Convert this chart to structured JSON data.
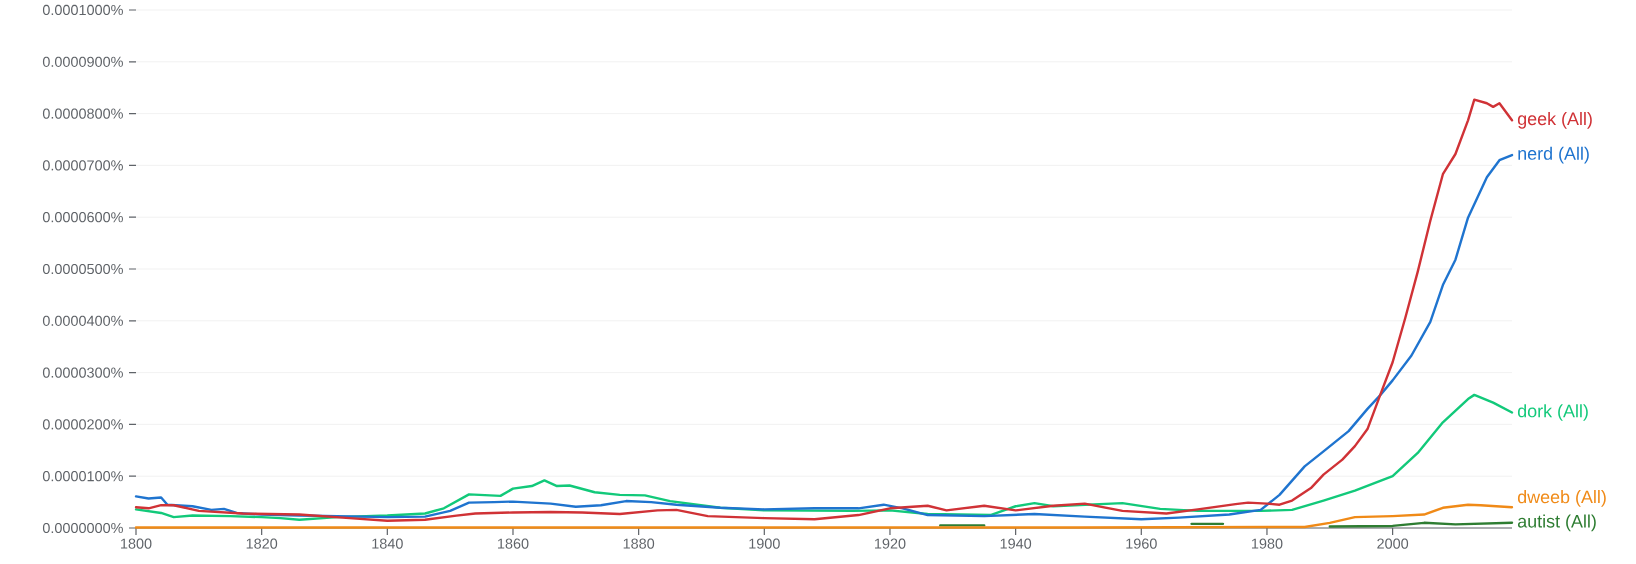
{
  "chart_data": {
    "type": "line",
    "xlim": [
      1800,
      2019
    ],
    "ylim": [
      0,
      0.0001
    ],
    "xticks": [
      1800,
      1820,
      1840,
      1860,
      1880,
      1900,
      1920,
      1940,
      1960,
      1980,
      2000
    ],
    "yticks": [
      {
        "value": 0,
        "label": "0.0000000%"
      },
      {
        "value": 1e-05,
        "label": "0.0000100%"
      },
      {
        "value": 2e-05,
        "label": "0.0000200%"
      },
      {
        "value": 3e-05,
        "label": "0.0000300%"
      },
      {
        "value": 4e-05,
        "label": "0.0000400%"
      },
      {
        "value": 5e-05,
        "label": "0.0000500%"
      },
      {
        "value": 6e-05,
        "label": "0.0000600%"
      },
      {
        "value": 7e-05,
        "label": "0.0000700%"
      },
      {
        "value": 8e-05,
        "label": "0.0000800%"
      },
      {
        "value": 9e-05,
        "label": "0.0000900%"
      },
      {
        "value": 0.0001,
        "label": "0.0001000%"
      }
    ],
    "grid": "y",
    "series": [
      {
        "name": "geek (All)",
        "color": "#d03236",
        "x": [
          1800,
          1802,
          1804,
          1806,
          1810,
          1817,
          1826,
          1834,
          1840,
          1846,
          1851,
          1854,
          1860,
          1866,
          1871,
          1877,
          1883,
          1886,
          1891,
          1900,
          1908,
          1915,
          1920,
          1926,
          1929,
          1935,
          1940,
          1946,
          1951,
          1957,
          1964,
          1969,
          1975,
          1977,
          1980,
          1982,
          1984,
          1987,
          1989,
          1992,
          1994,
          1996,
          1998,
          2000,
          2002,
          2004,
          2006,
          2008,
          2010,
          2012,
          2013,
          2015,
          2016,
          2017,
          2019
        ],
        "values": [
          4e-06,
          3.8e-06,
          4.4e-06,
          4.4e-06,
          3.3e-06,
          2.8e-06,
          2.6e-06,
          1.9e-06,
          1.4e-06,
          1.6e-06,
          2.4e-06,
          2.8e-06,
          3e-06,
          3.1e-06,
          3e-06,
          2.7e-06,
          3.4e-06,
          3.5e-06,
          2.3e-06,
          1.9e-06,
          1.7e-06,
          2.5e-06,
          3.8e-06,
          4.3e-06,
          3.4e-06,
          4.3e-06,
          3.4e-06,
          4.3e-06,
          4.7e-06,
          3.3e-06,
          2.8e-06,
          3.6e-06,
          4.6e-06,
          4.9e-06,
          4.7e-06,
          4.5e-06,
          5.3e-06,
          7.7e-06,
          1.03e-05,
          1.32e-05,
          1.58e-05,
          1.91e-05,
          2.56e-05,
          3.2e-05,
          4.05e-05,
          4.95e-05,
          5.93e-05,
          6.83e-05,
          7.22e-05,
          7.87e-05,
          8.27e-05,
          8.2e-05,
          8.13e-05,
          8.2e-05,
          7.87e-05
        ]
      },
      {
        "name": "nerd (All)",
        "color": "#1f74cf",
        "x": [
          1800,
          1802,
          1804,
          1805,
          1809,
          1812,
          1814,
          1816,
          1820,
          1826,
          1832,
          1840,
          1846,
          1850,
          1853,
          1857,
          1860,
          1866,
          1870,
          1874,
          1878,
          1882,
          1886,
          1893,
          1900,
          1908,
          1915,
          1919,
          1922,
          1926,
          1935,
          1943,
          1951,
          1960,
          1966,
          1974,
          1979,
          1982,
          1986,
          1989,
          1993,
          1996,
          1998,
          2000,
          2003,
          2006,
          2008,
          2010,
          2012,
          2014,
          2015,
          2017,
          2019
        ],
        "values": [
          6.1e-06,
          5.7e-06,
          5.9e-06,
          4.5e-06,
          4.2e-06,
          3.5e-06,
          3.7e-06,
          2.9e-06,
          2.6e-06,
          2.4e-06,
          2.3e-06,
          2.1e-06,
          2.2e-06,
          3.3e-06,
          4.9e-06,
          5e-06,
          5.1e-06,
          4.7e-06,
          4.1e-06,
          4.4e-06,
          5.2e-06,
          5e-06,
          4.5e-06,
          3.9e-06,
          3.6e-06,
          3.8e-06,
          3.8e-06,
          4.5e-06,
          3.8e-06,
          2.5e-06,
          2.3e-06,
          2.7e-06,
          2.2e-06,
          1.7e-06,
          2e-06,
          2.6e-06,
          3.5e-06,
          6.4e-06,
          1.19e-05,
          1.48e-05,
          1.87e-05,
          2.3e-05,
          2.56e-05,
          2.85e-05,
          3.33e-05,
          3.98e-05,
          4.69e-05,
          5.18e-05,
          5.99e-05,
          6.51e-05,
          6.77e-05,
          7.1e-05,
          7.2e-05
        ]
      },
      {
        "name": "dork (All)",
        "color": "#12c97a",
        "x": [
          1800,
          1804,
          1806,
          1809,
          1815,
          1820,
          1823,
          1826,
          1832,
          1840,
          1846,
          1849,
          1853,
          1858,
          1860,
          1863,
          1865,
          1867,
          1869,
          1873,
          1877,
          1881,
          1885,
          1893,
          1900,
          1914,
          1920,
          1926,
          1936,
          1940,
          1943,
          1946,
          1957,
          1963,
          1969,
          1979,
          1984,
          1989,
          1994,
          2000,
          2004,
          2008,
          2012,
          2013,
          2016,
          2019
        ],
        "values": [
          3.6e-06,
          2.9e-06,
          2.1e-06,
          2.4e-06,
          2.3e-06,
          2.1e-06,
          1.9e-06,
          1.6e-06,
          2.1e-06,
          2.4e-06,
          2.8e-06,
          3.8e-06,
          6.5e-06,
          6.2e-06,
          7.6e-06,
          8.1e-06,
          9.2e-06,
          8.1e-06,
          8.2e-06,
          6.9e-06,
          6.4e-06,
          6.3e-06,
          5.2e-06,
          3.9e-06,
          3.4e-06,
          3.3e-06,
          3.4e-06,
          2.7e-06,
          2.5e-06,
          4.2e-06,
          4.8e-06,
          4.2e-06,
          4.8e-06,
          3.7e-06,
          3.3e-06,
          3.3e-06,
          3.5e-06,
          5.3e-06,
          7.2e-06,
          1e-05,
          1.45e-05,
          2.04e-05,
          2.49e-05,
          2.57e-05,
          2.42e-05,
          2.23e-05
        ]
      },
      {
        "name": "dweeb (All)",
        "color": "#f08a17",
        "x": [
          1800,
          1850,
          1900,
          1950,
          1986,
          1990,
          1994,
          2000,
          2005,
          2008,
          2012,
          2014,
          2019
        ],
        "values": [
          1e-07,
          1e-07,
          1e-07,
          1e-07,
          2e-07,
          1e-06,
          2.1e-06,
          2.3e-06,
          2.6e-06,
          3.9e-06,
          4.5e-06,
          4.4e-06,
          4e-06
        ]
      },
      {
        "name": "autist (All)",
        "color": "#2e7d32",
        "x": [
          1928,
          1935,
          1937,
          1966,
          1968,
          1973,
          1975,
          1990,
          2000,
          2005,
          2010,
          2019
        ],
        "values": [
          5e-07,
          5e-07,
          null,
          null,
          8e-07,
          8e-07,
          null,
          3e-07,
          4e-07,
          1e-06,
          7e-07,
          1e-06
        ]
      }
    ]
  }
}
